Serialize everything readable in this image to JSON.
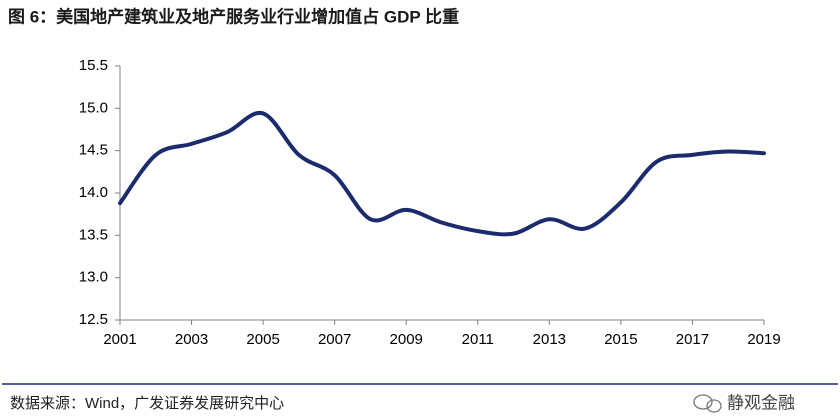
{
  "chart_data": {
    "type": "line",
    "title": "图 6：美国地产建筑业及地产服务业行业增加值占 GDP 比重",
    "source": "数据来源：Wind，广发证券发展研究中心",
    "watermark": "静观金融",
    "x": [
      2001,
      2002,
      2003,
      2004,
      2005,
      2006,
      2007,
      2008,
      2009,
      2010,
      2011,
      2012,
      2013,
      2014,
      2015,
      2016,
      2017,
      2018,
      2019
    ],
    "values": [
      13.88,
      14.45,
      14.58,
      14.72,
      14.94,
      14.45,
      14.21,
      13.69,
      13.8,
      13.65,
      13.55,
      13.52,
      13.69,
      13.58,
      13.89,
      14.37,
      14.45,
      14.49,
      14.47
    ],
    "color": "#1c2a6e",
    "xlim": [
      2001,
      2019
    ],
    "xticks": [
      2001,
      2003,
      2005,
      2007,
      2009,
      2011,
      2013,
      2015,
      2017,
      2019
    ],
    "ylim": [
      12.5,
      15.5
    ],
    "yticks": [
      {
        "value": 12.5,
        "label": "12.5"
      },
      {
        "value": 13,
        "label": "13.0"
      },
      {
        "value": 13.5,
        "label": "13.5"
      },
      {
        "value": 14,
        "label": "14.0"
      },
      {
        "value": 14.5,
        "label": "14.5"
      },
      {
        "value": 15,
        "label": "15.0"
      },
      {
        "value": 15.5,
        "label": "15.5"
      }
    ],
    "grid": false
  }
}
